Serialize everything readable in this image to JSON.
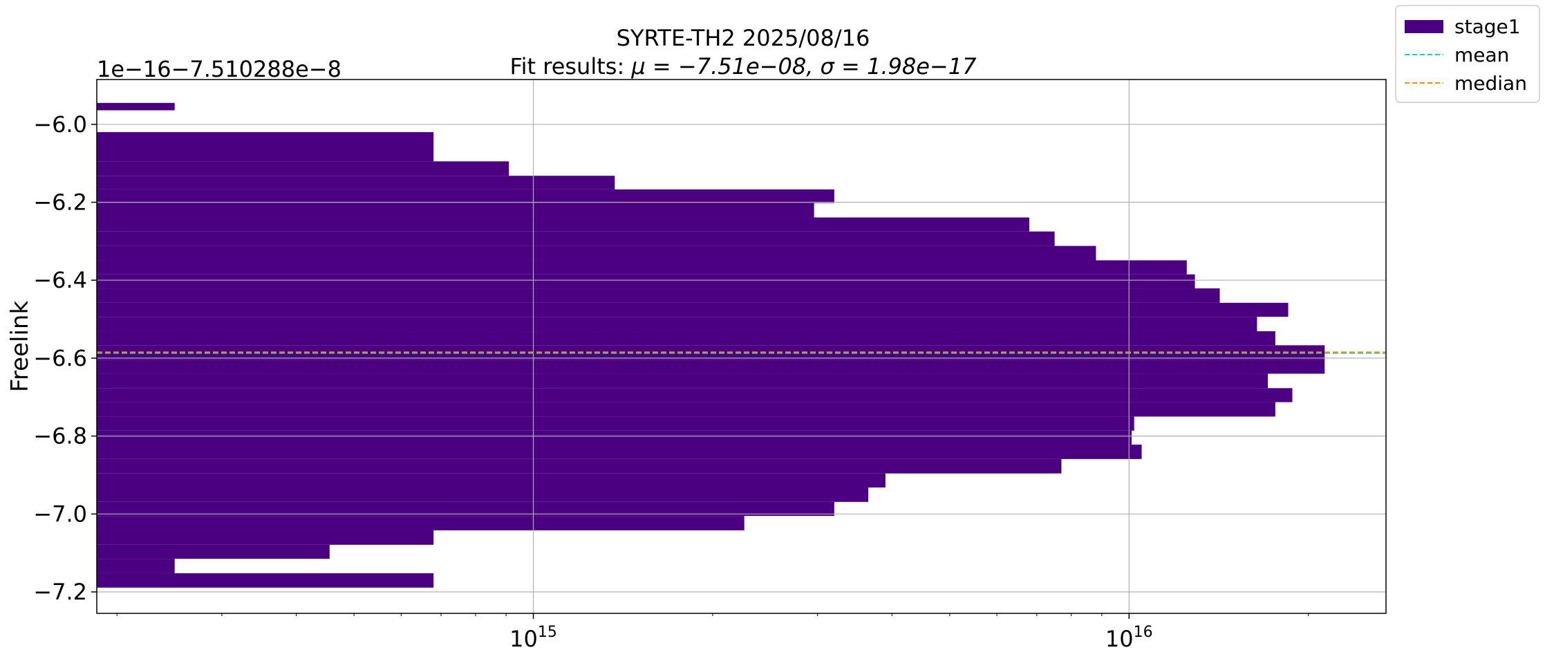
{
  "chart_data": {
    "type": "bar",
    "orientation": "horizontal",
    "title": "SYRTE-TH2 2025/08/16",
    "subtitle_prefix": "Fit results: ",
    "subtitle_math": "μ = −7.51e−08,  σ = 1.98e−17",
    "offset_text": "1e−16−7.510288e−8",
    "xlabel": "",
    "ylabel": "Freelink",
    "xscale": "log",
    "xlim": [
      185000000000000,
      27000000000000000
    ],
    "ylim": [
      -7.255,
      -5.885
    ],
    "x_ticks": [
      {
        "value": 1000000000000000,
        "base": "10",
        "exp": "15"
      },
      {
        "value": 10000000000000000,
        "base": "10",
        "exp": "16"
      }
    ],
    "y_ticks": [
      -6.0,
      -6.2,
      -6.4,
      -6.6,
      -6.8,
      -7.0,
      -7.2
    ],
    "y_tick_labels": [
      "−6.0",
      "−6.2",
      "−6.4",
      "−6.6",
      "−6.8",
      "−7.0",
      "−7.2"
    ],
    "grid": true,
    "bar_color": "#4b0082",
    "bins": [
      {
        "y0": -5.964,
        "y1": -5.945,
        "count": 250000000000000
      },
      {
        "y0": -6.008,
        "y1": -5.964,
        "count": 0
      },
      {
        "y0": -6.095,
        "y1": -6.02,
        "count": 680000000000000
      },
      {
        "y0": -6.132,
        "y1": -6.095,
        "count": 910000000000000
      },
      {
        "y0": -6.167,
        "y1": -6.132,
        "count": 1370000000000000
      },
      {
        "y0": -6.202,
        "y1": -6.167,
        "count": 3200000000000000
      },
      {
        "y0": -6.239,
        "y1": -6.202,
        "count": 2960000000000000
      },
      {
        "y0": -6.275,
        "y1": -6.239,
        "count": 6800000000000000
      },
      {
        "y0": -6.312,
        "y1": -6.275,
        "count": 7500000000000000
      },
      {
        "y0": -6.349,
        "y1": -6.312,
        "count": 8800000000000000
      },
      {
        "y0": -6.385,
        "y1": -6.349,
        "count": 12500000000000000
      },
      {
        "y0": -6.421,
        "y1": -6.385,
        "count": 12900000000000000
      },
      {
        "y0": -6.458,
        "y1": -6.421,
        "count": 14200000000000000
      },
      {
        "y0": -6.494,
        "y1": -6.458,
        "count": 18500000000000000
      },
      {
        "y0": -6.531,
        "y1": -6.494,
        "count": 16400000000000000
      },
      {
        "y0": -6.567,
        "y1": -6.531,
        "count": 17600000000000000
      },
      {
        "y0": -6.604,
        "y1": -6.567,
        "count": 21300000000000000
      },
      {
        "y0": -6.64,
        "y1": -6.604,
        "count": 21300000000000000
      },
      {
        "y0": -6.677,
        "y1": -6.64,
        "count": 17100000000000000
      },
      {
        "y0": -6.713,
        "y1": -6.677,
        "count": 18800000000000000
      },
      {
        "y0": -6.75,
        "y1": -6.713,
        "count": 17600000000000000
      },
      {
        "y0": -6.786,
        "y1": -6.75,
        "count": 10200000000000000
      },
      {
        "y0": -6.822,
        "y1": -6.786,
        "count": 10100000000000000
      },
      {
        "y0": -6.859,
        "y1": -6.822,
        "count": 10500000000000000
      },
      {
        "y0": -6.896,
        "y1": -6.859,
        "count": 7700000000000000
      },
      {
        "y0": -6.932,
        "y1": -6.896,
        "count": 3900000000000000
      },
      {
        "y0": -6.969,
        "y1": -6.932,
        "count": 3650000000000000
      },
      {
        "y0": -7.005,
        "y1": -6.969,
        "count": 3200000000000000
      },
      {
        "y0": -7.042,
        "y1": -7.005,
        "count": 2260000000000000
      },
      {
        "y0": -7.079,
        "y1": -7.042,
        "count": 680000000000000
      },
      {
        "y0": -7.115,
        "y1": -7.079,
        "count": 455000000000000
      },
      {
        "y0": -7.152,
        "y1": -7.115,
        "count": 250000000000000
      },
      {
        "y0": -7.189,
        "y1": -7.152,
        "count": 680000000000000
      }
    ],
    "lines": [
      {
        "name": "mean",
        "y": -6.587,
        "color": "#00ced1",
        "style": "dashed"
      },
      {
        "name": "median",
        "y": -6.585,
        "color": "#ff8c00",
        "style": "dashed"
      }
    ],
    "legend": {
      "placement": "upper-right-outside",
      "entries": [
        {
          "label": "stage1",
          "kind": "patch",
          "color": "#4b0082"
        },
        {
          "label": "mean",
          "kind": "dashed-line",
          "color": "#00ced1"
        },
        {
          "label": "median",
          "kind": "dashed-line",
          "color": "#ff8c00"
        }
      ]
    }
  }
}
